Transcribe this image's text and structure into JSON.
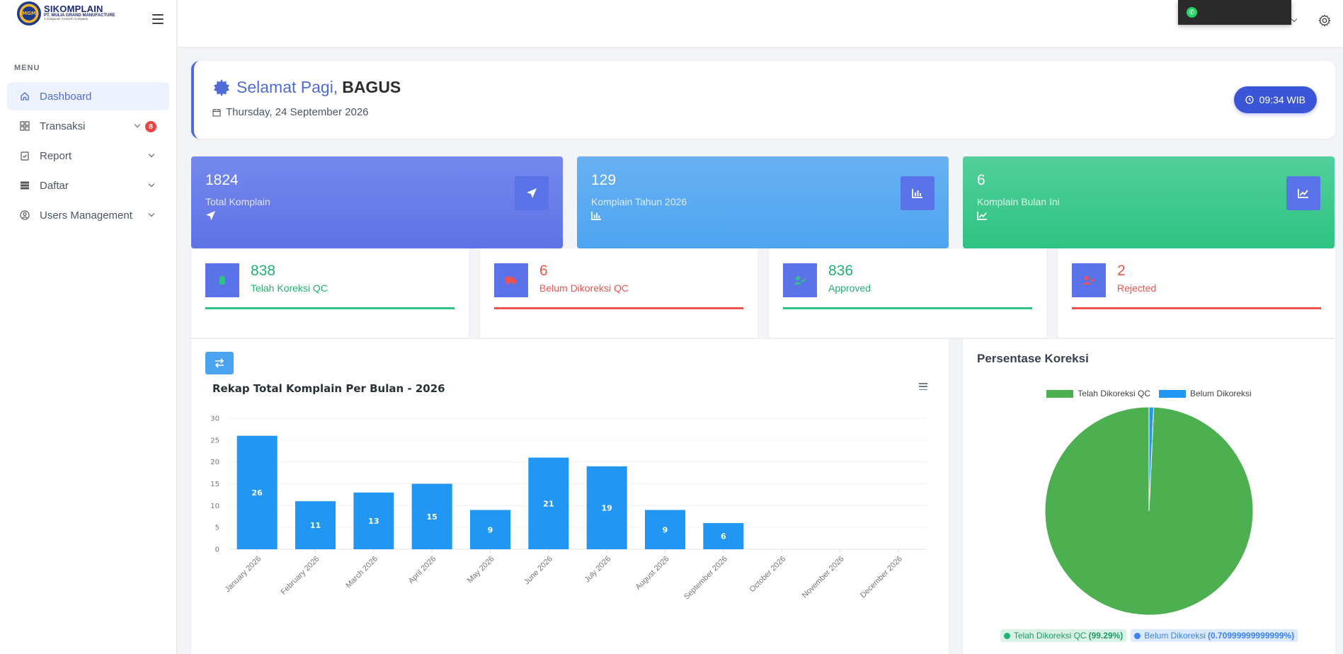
{
  "brand": {
    "logo_text": "MGM",
    "title": "SIKOMPLAIN",
    "subtitle": "PT. MULIA GRAND MANUFACTURE",
    "tagline": "A Cargoose Concern Company"
  },
  "sidebar": {
    "menu_heading": "MENU",
    "items": [
      {
        "label": "Dashboard",
        "icon": "home-icon",
        "active": true
      },
      {
        "label": "Transaksi",
        "icon": "grid-icon",
        "badge": "8"
      },
      {
        "label": "Report",
        "icon": "clipboard-icon"
      },
      {
        "label": "Daftar",
        "icon": "list-icon"
      },
      {
        "label": "Users Management",
        "icon": "user-circle-icon"
      }
    ]
  },
  "greeting": {
    "prefix": "Selamat Pagi,",
    "name": "BAGUS",
    "date": "Thursday, 24 September 2026",
    "time": "09:34 WIB"
  },
  "stats": [
    {
      "value": "1824",
      "label": "Total Komplain",
      "icon": "send-icon",
      "color": "#6a7eea"
    },
    {
      "value": "129",
      "label": "Komplain Tahun 2026",
      "icon": "bar-chart-icon",
      "color": "#5aaaf1"
    },
    {
      "value": "6",
      "label": "Komplain Bulan Ini",
      "icon": "line-chart-icon",
      "color": "#3fc98f"
    }
  ],
  "kpis": [
    {
      "value": "838",
      "label": "Telah Koreksi QC",
      "status": "green",
      "icon": "clipboard-check-icon"
    },
    {
      "value": "6",
      "label": "Belum Dikoreksi QC",
      "status": "red",
      "icon": "truck-icon"
    },
    {
      "value": "836",
      "label": "Approved",
      "status": "green",
      "icon": "user-check-icon"
    },
    {
      "value": "2",
      "label": "Rejected",
      "status": "red",
      "icon": "user-x-icon"
    }
  ],
  "bar_chart": {
    "chart_data": {
      "type": "bar",
      "title": "Rekap Total Komplain Per Bulan - 2026",
      "categories": [
        "January 2026",
        "February 2026",
        "March 2026",
        "April 2026",
        "May 2026",
        "June 2026",
        "July 2026",
        "August 2026",
        "September 2026",
        "October 2026",
        "November 2026",
        "December 2026"
      ],
      "values": [
        26,
        11,
        13,
        15,
        9,
        21,
        19,
        9,
        6,
        null,
        null,
        null
      ],
      "yticks": [
        "0",
        "5",
        "10",
        "15",
        "20",
        "25",
        "30"
      ],
      "ylim": [
        0,
        30
      ],
      "color": "#2196f3"
    }
  },
  "pie_chart": {
    "title": "Persentase Koreksi",
    "chart_data": {
      "type": "pie",
      "labels": [
        "Telah Dikoreksi QC",
        "Belum Dikoreksi"
      ],
      "values": [
        99.29,
        0.70999999999999
      ],
      "colors": [
        "#4caf50",
        "#2196f3"
      ]
    },
    "chips": [
      {
        "label": "Telah Dikoreksi QC",
        "value": "(99.29%)"
      },
      {
        "label": "Belum Dikoreksi",
        "value": "(0.70999999999999%)"
      }
    ]
  }
}
